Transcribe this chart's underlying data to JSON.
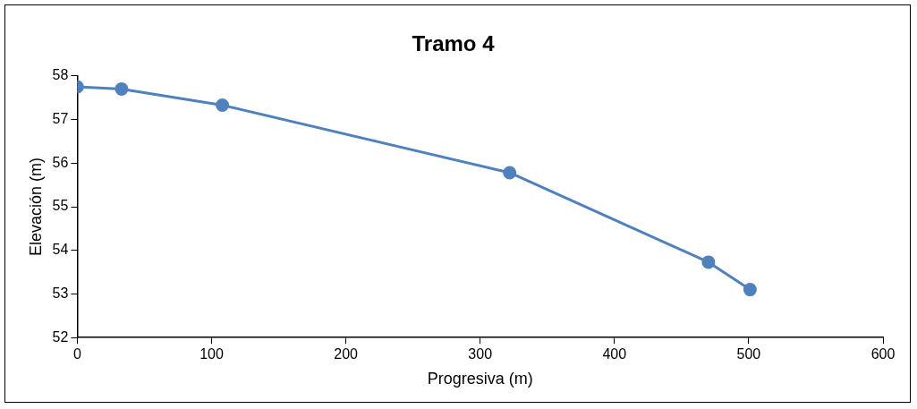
{
  "chart_data": {
    "type": "line",
    "title": "Tramo 4",
    "xlabel": "Progresiva (m)",
    "ylabel": "Elevación (m)",
    "series": [
      {
        "color": "#4f81bd",
        "x": [
          0,
          33,
          108,
          322,
          470,
          501
        ],
        "values": [
          57.75,
          57.7,
          57.33,
          55.78,
          53.73,
          53.1
        ]
      }
    ],
    "xlim": [
      0,
      600
    ],
    "xticks": [
      0,
      100,
      200,
      300,
      400,
      500,
      600
    ],
    "ylim": [
      52,
      58
    ],
    "yticks": [
      52,
      53,
      54,
      55,
      56,
      57,
      58
    ],
    "grid": false,
    "legend": false,
    "marker": "circle",
    "line_style": "solid"
  }
}
